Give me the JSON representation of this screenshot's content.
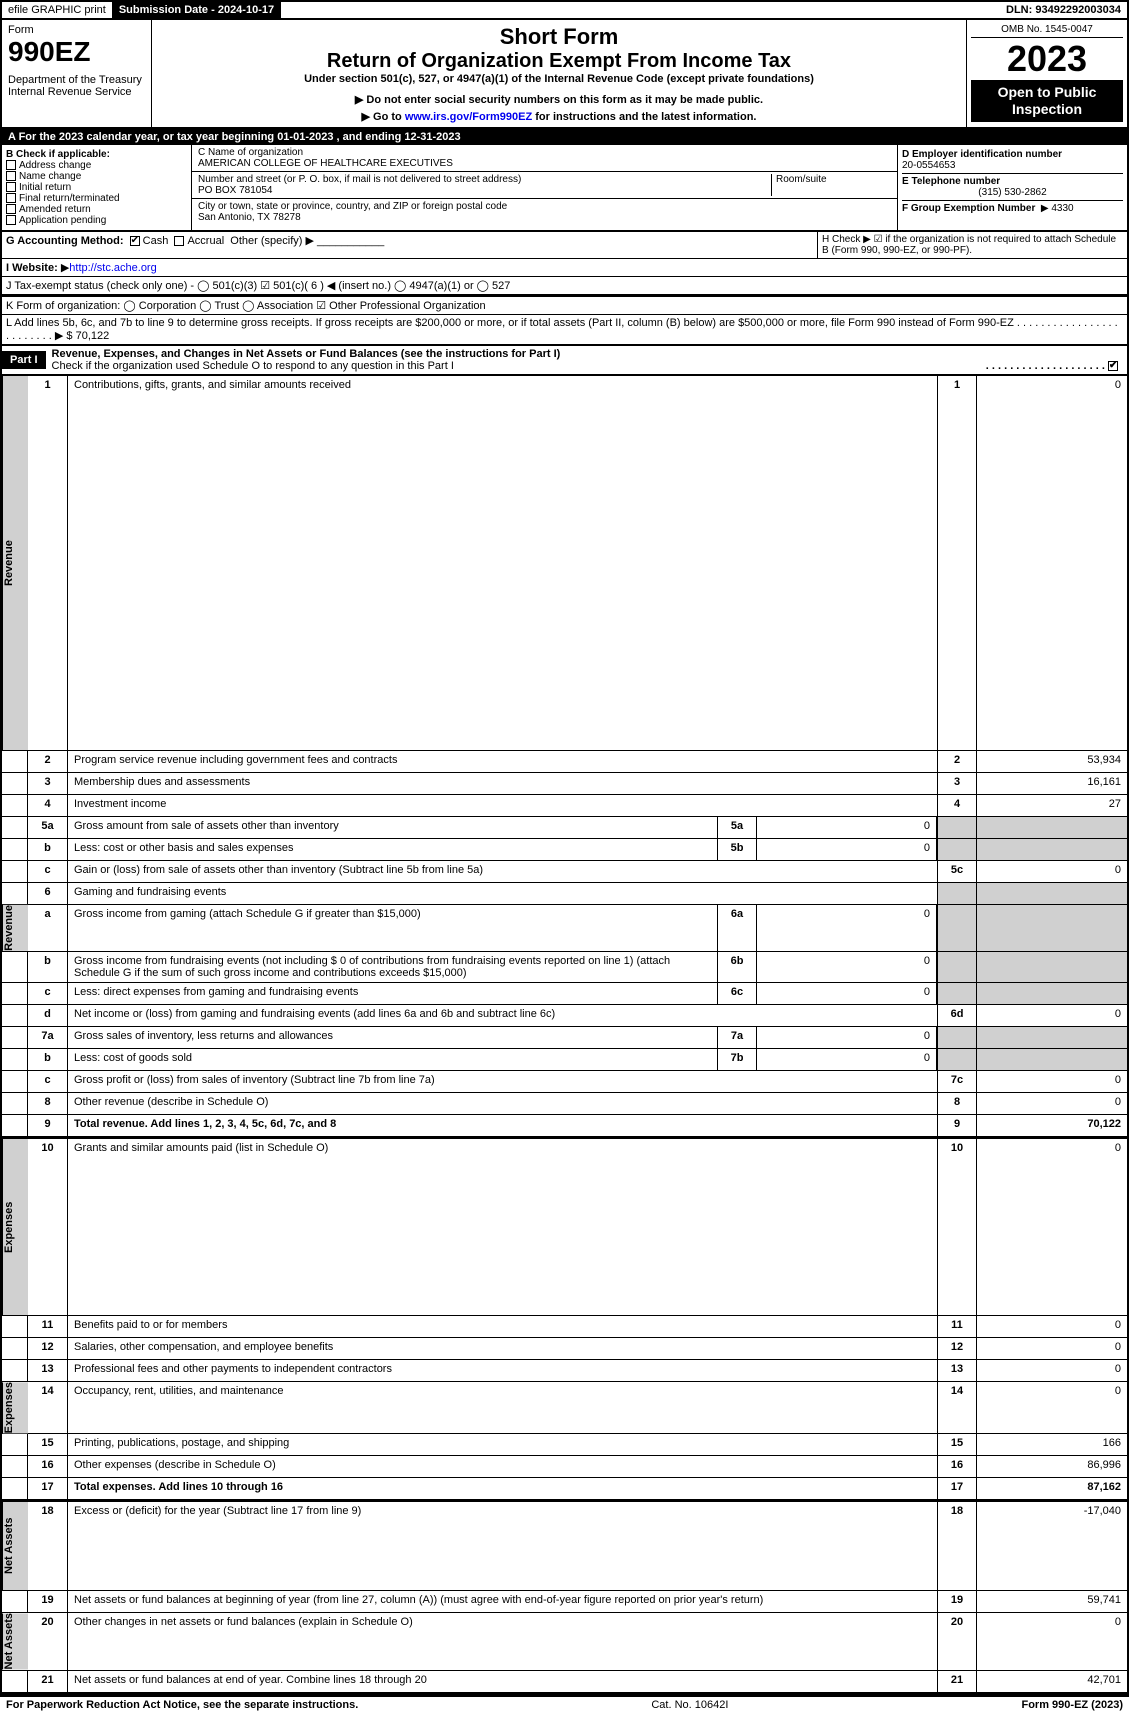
{
  "colors": {
    "black": "#000000",
    "white": "#ffffff",
    "gray": "#d0d0d0",
    "link": "#0000ee"
  },
  "topbar": {
    "efile": "efile GRAPHIC print",
    "submission": "Submission Date - 2024-10-17",
    "dln": "DLN: 93492292003034"
  },
  "header": {
    "form_label": "Form",
    "form_number": "990EZ",
    "dept": "Department of the Treasury\nInternal Revenue Service",
    "short": "Short Form",
    "title": "Return of Organization Exempt From Income Tax",
    "subtitle": "Under section 501(c), 527, or 4947(a)(1) of the Internal Revenue Code (except private foundations)",
    "note1": "Do not enter social security numbers on this form as it may be made public.",
    "note2": "Go to www.irs.gov/Form990EZ for instructions and the latest information.",
    "note2_link": "www.irs.gov/Form990EZ",
    "omb": "OMB No. 1545-0047",
    "year": "2023",
    "open": "Open to Public Inspection"
  },
  "lineA": "A  For the 2023 calendar year, or tax year beginning 01-01-2023 , and ending 12-31-2023",
  "sectionB": {
    "label": "B  Check if applicable:",
    "items": [
      "Address change",
      "Name change",
      "Initial return",
      "Final return/terminated",
      "Amended return",
      "Application pending"
    ]
  },
  "sectionC": {
    "name_label": "C Name of organization",
    "name": "AMERICAN COLLEGE OF HEALTHCARE EXECUTIVES",
    "street_label": "Number and street (or P. O. box, if mail is not delivered to street address)",
    "room_label": "Room/suite",
    "street": "PO BOX 781054",
    "city_label": "City or town, state or province, country, and ZIP or foreign postal code",
    "city": "San Antonio, TX  78278"
  },
  "sectionD": {
    "ein_label": "D Employer identification number",
    "ein": "20-0554653",
    "phone_label": "E Telephone number",
    "phone": "(315) 530-2862",
    "group_label": "F Group Exemption Number",
    "group": "4330"
  },
  "lineG": {
    "label": "G Accounting Method:",
    "cash": "Cash",
    "accrual": "Accrual",
    "other": "Other (specify)"
  },
  "lineH": "H   Check ▶ ☑ if the organization is not required to attach Schedule B (Form 990, 990-EZ, or 990-PF).",
  "lineI": {
    "label": "I Website:",
    "url": "http://stc.ache.org"
  },
  "lineJ": "J Tax-exempt status (check only one) - ◯ 501(c)(3) ☑ 501(c)( 6 ) ◀ (insert no.) ◯ 4947(a)(1) or ◯ 527",
  "lineK": "K Form of organization:  ◯ Corporation  ◯ Trust  ◯ Association  ☑ Other Professional Organization",
  "lineL": {
    "text": "L Add lines 5b, 6c, and 7b to line 9 to determine gross receipts. If gross receipts are $200,000 or more, or if total assets (Part II, column (B) below) are $500,000 or more, file Form 990 instead of Form 990-EZ",
    "val": "$ 70,122"
  },
  "part1": {
    "label": "Part I",
    "title": "Revenue, Expenses, and Changes in Net Assets or Fund Balances (see the instructions for Part I)",
    "check": "Check if the organization used Schedule O to respond to any question in this Part I"
  },
  "side_labels": {
    "revenue": "Revenue",
    "expenses": "Expenses",
    "net": "Net Assets"
  },
  "rows": [
    {
      "n": "1",
      "d": "Contributions, gifts, grants, and similar amounts received",
      "ln": "1",
      "v": "0"
    },
    {
      "n": "2",
      "d": "Program service revenue including government fees and contracts",
      "ln": "2",
      "v": "53,934"
    },
    {
      "n": "3",
      "d": "Membership dues and assessments",
      "ln": "3",
      "v": "16,161"
    },
    {
      "n": "4",
      "d": "Investment income",
      "ln": "4",
      "v": "27"
    },
    {
      "n": "5a",
      "d": "Gross amount from sale of assets other than inventory",
      "sl": "5a",
      "sv": "0",
      "gray": true
    },
    {
      "n": "b",
      "d": "Less: cost or other basis and sales expenses",
      "sl": "5b",
      "sv": "0",
      "gray": true
    },
    {
      "n": "c",
      "d": "Gain or (loss) from sale of assets other than inventory (Subtract line 5b from line 5a)",
      "ln": "5c",
      "v": "0"
    },
    {
      "n": "6",
      "d": "Gaming and fundraising events",
      "gray": true,
      "noval": true
    },
    {
      "n": "a",
      "d": "Gross income from gaming (attach Schedule G if greater than $15,000)",
      "sl": "6a",
      "sv": "0",
      "gray": true
    },
    {
      "n": "b",
      "d": "Gross income from fundraising events (not including $ 0 of contributions from fundraising events reported on line 1) (attach Schedule G if the sum of such gross income and contributions exceeds $15,000)",
      "sl": "6b",
      "sv": "0",
      "gray": true
    },
    {
      "n": "c",
      "d": "Less: direct expenses from gaming and fundraising events",
      "sl": "6c",
      "sv": "0",
      "gray": true
    },
    {
      "n": "d",
      "d": "Net income or (loss) from gaming and fundraising events (add lines 6a and 6b and subtract line 6c)",
      "ln": "6d",
      "v": "0"
    },
    {
      "n": "7a",
      "d": "Gross sales of inventory, less returns and allowances",
      "sl": "7a",
      "sv": "0",
      "gray": true
    },
    {
      "n": "b",
      "d": "Less: cost of goods sold",
      "sl": "7b",
      "sv": "0",
      "gray": true
    },
    {
      "n": "c",
      "d": "Gross profit or (loss) from sales of inventory (Subtract line 7b from line 7a)",
      "ln": "7c",
      "v": "0"
    },
    {
      "n": "8",
      "d": "Other revenue (describe in Schedule O)",
      "ln": "8",
      "v": "0"
    },
    {
      "n": "9",
      "d": "Total revenue. Add lines 1, 2, 3, 4, 5c, 6d, 7c, and 8",
      "ln": "9",
      "v": "70,122",
      "bold": true,
      "arrow": true
    }
  ],
  "exp_rows": [
    {
      "n": "10",
      "d": "Grants and similar amounts paid (list in Schedule O)",
      "ln": "10",
      "v": "0"
    },
    {
      "n": "11",
      "d": "Benefits paid to or for members",
      "ln": "11",
      "v": "0"
    },
    {
      "n": "12",
      "d": "Salaries, other compensation, and employee benefits",
      "ln": "12",
      "v": "0"
    },
    {
      "n": "13",
      "d": "Professional fees and other payments to independent contractors",
      "ln": "13",
      "v": "0"
    },
    {
      "n": "14",
      "d": "Occupancy, rent, utilities, and maintenance",
      "ln": "14",
      "v": "0"
    },
    {
      "n": "15",
      "d": "Printing, publications, postage, and shipping",
      "ln": "15",
      "v": "166"
    },
    {
      "n": "16",
      "d": "Other expenses (describe in Schedule O)",
      "ln": "16",
      "v": "86,996"
    },
    {
      "n": "17",
      "d": "Total expenses. Add lines 10 through 16",
      "ln": "17",
      "v": "87,162",
      "bold": true,
      "arrow": true
    }
  ],
  "net_rows": [
    {
      "n": "18",
      "d": "Excess or (deficit) for the year (Subtract line 17 from line 9)",
      "ln": "18",
      "v": "-17,040"
    },
    {
      "n": "19",
      "d": "Net assets or fund balances at beginning of year (from line 27, column (A)) (must agree with end-of-year figure reported on prior year's return)",
      "ln": "19",
      "v": "59,741"
    },
    {
      "n": "20",
      "d": "Other changes in net assets or fund balances (explain in Schedule O)",
      "ln": "20",
      "v": "0"
    },
    {
      "n": "21",
      "d": "Net assets or fund balances at end of year. Combine lines 18 through 20",
      "ln": "21",
      "v": "42,701"
    }
  ],
  "footer": {
    "left": "For Paperwork Reduction Act Notice, see the separate instructions.",
    "mid": "Cat. No. 10642I",
    "right": "Form 990-EZ (2023)"
  }
}
